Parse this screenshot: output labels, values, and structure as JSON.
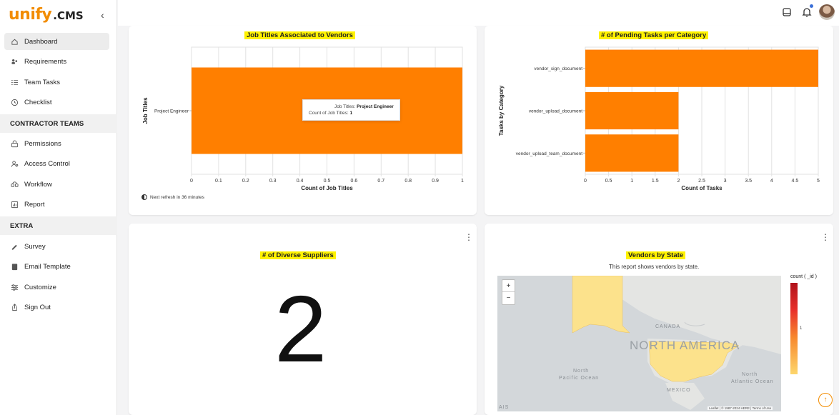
{
  "brand": {
    "logo_main": "unify",
    "logo_suffix": ".CMS",
    "accent": "#f28c00"
  },
  "sidebar": {
    "items_main": [
      {
        "label": "Dashboard",
        "icon": "home-icon",
        "active": true
      },
      {
        "label": "Requirements",
        "icon": "users-icon"
      },
      {
        "label": "Team Tasks",
        "icon": "list-icon"
      },
      {
        "label": "Checklist",
        "icon": "clock-icon"
      }
    ],
    "section_contractor": "CONTRACTOR TEAMS",
    "items_contractor": [
      {
        "label": "Permissions",
        "icon": "lock-icon"
      },
      {
        "label": "Access Control",
        "icon": "user-gear-icon"
      },
      {
        "label": "Workflow",
        "icon": "workflow-icon"
      },
      {
        "label": "Report",
        "icon": "report-icon"
      }
    ],
    "section_extra": "EXTRA",
    "items_extra": [
      {
        "label": "Survey",
        "icon": "survey-icon"
      },
      {
        "label": "Email Template",
        "icon": "email-icon"
      },
      {
        "label": "Customize",
        "icon": "sliders-icon"
      },
      {
        "label": "Sign Out",
        "icon": "sign-out-icon"
      }
    ]
  },
  "cards": {
    "job_titles": {
      "title": "Job Titles Associated to Vendors",
      "refresh_text": "Next refresh in 36 minutes",
      "tooltip": {
        "k1": "Job Titles:",
        "v1": "Project Engineer",
        "k2": "Count of Job Titles:",
        "v2": "1"
      }
    },
    "pending_tasks": {
      "title": "# of Pending Tasks per Category"
    },
    "diverse_suppliers": {
      "title": "# of Diverse Suppliers",
      "value": "2"
    },
    "vendors_state": {
      "title": "Vendors by State",
      "subtitle": "This report shows vendors by state.",
      "legend_title": "count ( _id )",
      "legend_mid": "1",
      "map_labels": {
        "canada": "CANADA",
        "north_america": "NORTH AMERICA",
        "mexico": "MEXICO",
        "npo1": "North",
        "npo2": "Pacific Ocean",
        "nao1": "North",
        "nao2": "Atlantic Ocean",
        "ais": "AIS"
      },
      "zoom_in": "+",
      "zoom_out": "−",
      "attribution": "Leaflet | © 1987-2024 HERE | Terms of Use"
    }
  },
  "chart_data": [
    {
      "type": "bar",
      "orientation": "horizontal",
      "title": "Job Titles Associated to Vendors",
      "categories": [
        "Project Engineer"
      ],
      "values": [
        1
      ],
      "xlabel": "Count of Job Titles",
      "ylabel": "Job Titles",
      "xlim": [
        0,
        1
      ],
      "xticks": [
        "0",
        "0.1",
        "0.2",
        "0.3",
        "0.4",
        "0.5",
        "0.6",
        "0.7",
        "0.8",
        "0.9",
        "1"
      ],
      "grid": true,
      "color": "#ff7f00"
    },
    {
      "type": "bar",
      "orientation": "horizontal",
      "title": "# of Pending Tasks per Category",
      "categories": [
        "vendor_sign_document",
        "vendor_upload_document",
        "vendor_upload_team_document"
      ],
      "values": [
        5,
        2,
        2
      ],
      "xlabel": "Count of Tasks",
      "ylabel": "Tasks by Category",
      "xlim": [
        0,
        5
      ],
      "xticks": [
        "0",
        "0.5",
        "1",
        "1.5",
        "2",
        "2.5",
        "3",
        "3.5",
        "4",
        "4.5",
        "5"
      ],
      "grid": true,
      "color": "#ff7f00"
    }
  ]
}
